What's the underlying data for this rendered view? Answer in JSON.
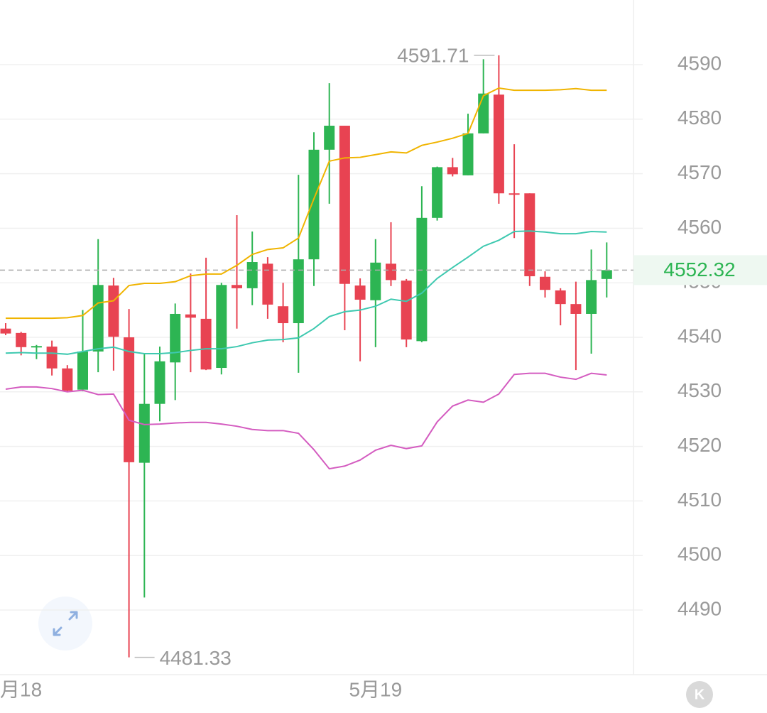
{
  "chart_data": {
    "type": "candlestick",
    "categories": [
      "月18",
      null,
      null,
      null,
      null,
      null,
      null,
      null,
      null,
      null,
      null,
      null,
      null,
      null,
      null,
      null,
      null,
      null,
      null,
      null,
      null,
      null,
      null,
      null,
      "5月19",
      null,
      null,
      null,
      null,
      null,
      null,
      null,
      null,
      null,
      null,
      null,
      null,
      null,
      null,
      null
    ],
    "open": [
      4541.6,
      4540.8,
      4538.2,
      4538.3,
      4534.3,
      4530.4,
      4537.4,
      4549.5,
      4540.0,
      4517.0,
      4527.8,
      4535.4,
      4544.2,
      4543.4,
      4534.4,
      4549.6,
      4549.0,
      4553.5,
      4545.7,
      4542.6,
      4554.3,
      4574.4,
      4578.8,
      4549.5,
      4546.8,
      4553.5,
      4550.4,
      4539.3,
      4561.9,
      4571.2,
      4569.7,
      4577.4,
      4584.5,
      4566.4,
      4566.4,
      4551.1,
      4548.6,
      4546.1,
      4544.3,
      4550.7
    ],
    "high": [
      4542.6,
      4541.0,
      4538.6,
      4539.4,
      4534.9,
      4545.0,
      4558.0,
      4550.9,
      4545.2,
      4537.1,
      4538.3,
      4546.2,
      4551.7,
      4554.6,
      4550.0,
      4562.4,
      4559.4,
      4554.7,
      4550.0,
      4569.8,
      4577.6,
      4586.6,
      4578.8,
      4550.8,
      4558.0,
      4561.1,
      4550.7,
      4567.7,
      4571.3,
      4572.9,
      4581.0,
      4591.0,
      4591.71,
      4575.4,
      4566.4,
      4552.1,
      4549.0,
      4550.2,
      4556.1,
      4557.4
    ],
    "low": [
      4540.4,
      4536.7,
      4536.0,
      4533.0,
      4530.0,
      4530.1,
      4533.6,
      4533.9,
      4481.33,
      4492.3,
      4524.6,
      4528.5,
      4533.6,
      4534.0,
      4533.2,
      4541.6,
      4545.9,
      4543.4,
      4539.1,
      4533.5,
      4549.4,
      4564.5,
      4541.3,
      4535.6,
      4538.2,
      4549.4,
      4538.2,
      4539.1,
      4561.4,
      4569.5,
      4569.7,
      4577.4,
      4564.5,
      4558.2,
      4549.4,
      4547.3,
      4542.2,
      4534.0,
      4537.0,
      4547.3
    ],
    "close": [
      4540.7,
      4538.2,
      4538.4,
      4534.3,
      4530.2,
      4537.4,
      4549.6,
      4540.1,
      4517.1,
      4527.8,
      4535.6,
      4544.3,
      4543.6,
      4534.1,
      4549.6,
      4549.0,
      4553.8,
      4546.0,
      4542.6,
      4554.3,
      4574.4,
      4578.8,
      4549.8,
      4546.9,
      4553.7,
      4550.5,
      4539.6,
      4561.9,
      4571.2,
      4569.9,
      4577.4,
      4584.7,
      4566.4,
      4566.2,
      4551.2,
      4548.7,
      4546.1,
      4544.3,
      4550.5,
      4552.32
    ],
    "up_color": "#2db553",
    "down_color": "#e84352",
    "overlays": [
      {
        "color": "#f0b400",
        "values": [
          4543.5,
          4543.5,
          4543.5,
          4543.5,
          4543.6,
          4544.0,
          4546.3,
          4546.7,
          4549.5,
          4549.9,
          4549.9,
          4550.2,
          4551.3,
          4551.6,
          4551.6,
          4553.2,
          4555.2,
          4556.1,
          4556.4,
          4558.2,
          4565.4,
          4572.3,
          4572.9,
          4573.0,
          4573.5,
          4574.0,
          4573.8,
          4575.2,
          4575.8,
          4576.5,
          4577.4,
          4584.3,
          4585.7,
          4585.3,
          4585.3,
          4585.3,
          4585.4,
          4585.6,
          4585.3,
          4585.3
        ]
      },
      {
        "color": "#3ec9b0",
        "values": [
          4537.1,
          4537.2,
          4537.1,
          4537.1,
          4536.9,
          4537.4,
          4537.9,
          4538.2,
          4537.4,
          4537.0,
          4537.0,
          4537.2,
          4537.6,
          4537.9,
          4537.9,
          4538.3,
          4539.0,
          4539.5,
          4539.6,
          4539.9,
          4541.6,
          4543.8,
          4544.7,
          4545.0,
          4545.7,
          4547.0,
          4546.6,
          4548.1,
          4550.8,
          4552.8,
          4554.7,
          4556.7,
          4557.8,
          4559.4,
          4559.5,
          4559.3,
          4559.0,
          4559.0,
          4559.4,
          4559.3
        ]
      },
      {
        "color": "#d45cc0",
        "values": [
          4530.5,
          4530.9,
          4530.9,
          4530.6,
          4530.0,
          4530.3,
          4529.5,
          4529.6,
          4524.8,
          4524.0,
          4524.1,
          4524.3,
          4524.4,
          4524.4,
          4524.1,
          4523.7,
          4523.1,
          4522.9,
          4522.9,
          4522.4,
          4519.4,
          4515.9,
          4516.4,
          4517.5,
          4519.3,
          4520.2,
          4519.6,
          4520.1,
          4524.5,
          4527.4,
          4528.5,
          4528.1,
          4529.6,
          4533.2,
          4533.4,
          4533.4,
          4532.7,
          4532.3,
          4533.4,
          4533.1
        ]
      }
    ],
    "ylim": [
      4478.15,
      4601.85
    ],
    "yticks": [
      4490,
      4500,
      4510,
      4520,
      4530,
      4540,
      4550,
      4560,
      4570,
      4580,
      4590
    ],
    "grid": true,
    "high_annotation": 4591.71,
    "low_annotation": 4481.33,
    "last_price": 4552.32,
    "button_label": "K"
  }
}
